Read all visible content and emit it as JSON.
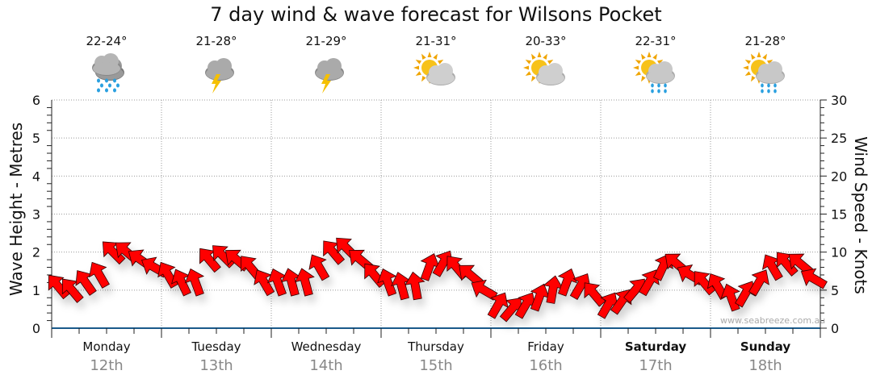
{
  "chart_data": {
    "type": "scatter",
    "title": "7 day wind & wave forecast for Wilsons Pocket",
    "ylabel": "Wave Height - Metres",
    "y2label": "Wind Speed - Knots",
    "ylim": [
      0,
      6
    ],
    "y2lim": [
      0,
      30
    ],
    "yticks": [
      "0",
      "1",
      "2",
      "3",
      "4",
      "5",
      "6"
    ],
    "y2ticks": [
      "0",
      "5",
      "10",
      "15",
      "20",
      "25",
      "30"
    ],
    "grid": true,
    "days": [
      {
        "day": "Monday",
        "date": "12th",
        "temp": "22-24°",
        "icon": "rain-cloud-icon",
        "bold": false
      },
      {
        "day": "Tuesday",
        "date": "13th",
        "temp": "21-28°",
        "icon": "thunderstorm-icon",
        "bold": false
      },
      {
        "day": "Wednesday",
        "date": "14th",
        "temp": "21-29°",
        "icon": "thunderstorm-icon",
        "bold": false
      },
      {
        "day": "Thursday",
        "date": "15th",
        "temp": "21-31°",
        "icon": "partly-sunny-icon",
        "bold": false
      },
      {
        "day": "Friday",
        "date": "16th",
        "temp": "20-33°",
        "icon": "partly-sunny-icon",
        "bold": false
      },
      {
        "day": "Saturday",
        "date": "17th",
        "temp": "22-31°",
        "icon": "sun-shower-icon",
        "bold": true
      },
      {
        "day": "Sunday",
        "date": "18th",
        "temp": "21-28°",
        "icon": "sun-shower-icon",
        "bold": true
      }
    ],
    "series": [
      {
        "name": "Wind speed (knots)",
        "interval_hours": 3,
        "values": [
          5.5,
          5,
          6,
          7,
          10,
          10,
          9,
          8,
          7,
          6,
          6,
          9,
          9.5,
          9,
          8,
          6,
          6,
          6,
          6,
          8,
          10,
          10.5,
          9,
          7,
          6,
          5.5,
          5.5,
          8,
          8.5,
          8,
          7,
          5,
          3,
          2.5,
          3,
          4,
          5,
          6,
          5.5,
          4.5,
          3,
          3.5,
          5,
          6,
          8,
          8.5,
          7,
          6,
          5.5,
          4,
          4.5,
          6,
          8,
          8.5,
          8.5,
          6.5
        ],
        "direction_deg": [
          320,
          320,
          325,
          330,
          315,
          310,
          305,
          300,
          330,
          335,
          340,
          320,
          315,
          310,
          320,
          330,
          340,
          345,
          345,
          330,
          320,
          315,
          310,
          320,
          340,
          345,
          350,
          20,
          30,
          320,
          310,
          300,
          30,
          40,
          30,
          20,
          10,
          20,
          30,
          320,
          30,
          35,
          40,
          30,
          25,
          310,
          300,
          320,
          330,
          340,
          30,
          30,
          330,
          320,
          310,
          300
        ]
      }
    ],
    "color": "#ff0000"
  },
  "credit": "www.seabreeze.com.au"
}
